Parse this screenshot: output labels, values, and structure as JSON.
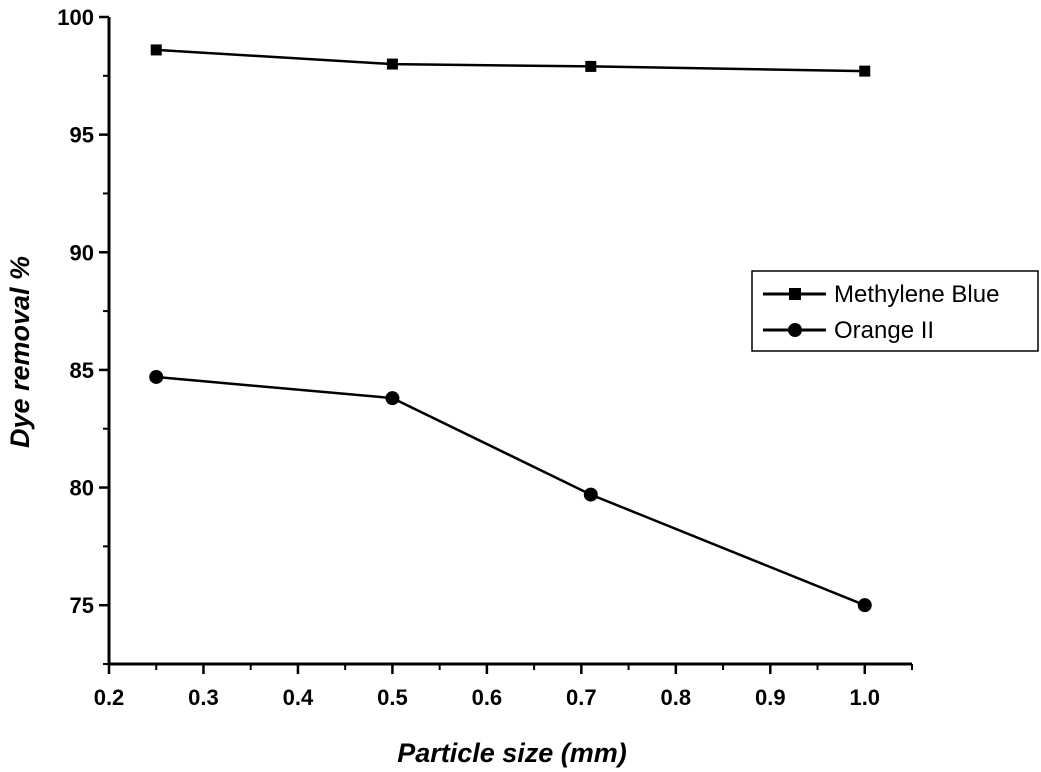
{
  "chart_data": {
    "type": "line",
    "title": "",
    "xlabel": "Particle size (mm)",
    "ylabel": "Dye removal %",
    "xlim": [
      0.2,
      1.05
    ],
    "ylim": [
      72.5,
      100
    ],
    "x_ticks": [
      0.2,
      0.3,
      0.4,
      0.5,
      0.6,
      0.7,
      0.8,
      0.9,
      1.0
    ],
    "x_tick_labels": [
      "0.2",
      "0.3",
      "0.4",
      "0.5",
      "0.6",
      "0.7",
      "0.8",
      "0.9",
      "1.0"
    ],
    "y_ticks": [
      75,
      80,
      85,
      90,
      95,
      100
    ],
    "y_tick_labels": [
      "75",
      "80",
      "85",
      "90",
      "95",
      "100"
    ],
    "grid": false,
    "legend_position": "right",
    "series": [
      {
        "name": "Methylene Blue",
        "marker": "square",
        "color": "#000000",
        "x": [
          0.25,
          0.5,
          0.71,
          1.0
        ],
        "y": [
          98.6,
          98.0,
          97.9,
          97.7
        ]
      },
      {
        "name": "Orange II",
        "marker": "circle",
        "color": "#000000",
        "x": [
          0.25,
          0.5,
          0.71,
          1.0
        ],
        "y": [
          84.7,
          83.8,
          79.7,
          75.0
        ]
      }
    ]
  }
}
